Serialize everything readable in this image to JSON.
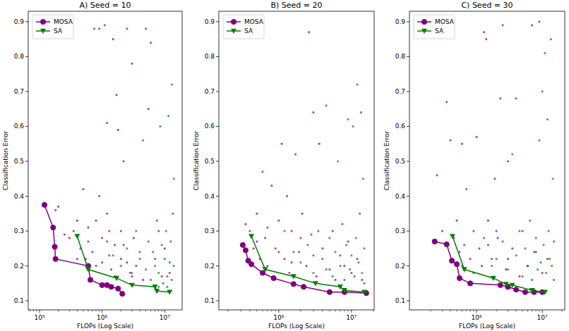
{
  "chart_data": [
    {
      "type": "scatter",
      "title": "A) Seed = 10",
      "x_label": "FLOPs (Log Scale)",
      "y_label": "Classification Error",
      "log": "x",
      "legend": "upper left",
      "xlim": [
        66000,
        19000000
      ],
      "ylim": [
        0.074,
        0.93
      ],
      "xticks": [
        {
          "value": 100000,
          "label": "10⁵"
        },
        {
          "value": 1000000,
          "label": "10⁶"
        },
        {
          "value": 10000000,
          "label": "10⁷"
        }
      ],
      "yticks": [
        0.1,
        0.2,
        0.3,
        0.4,
        0.5,
        0.6,
        0.7,
        0.8,
        0.9
      ],
      "series": [
        {
          "name": "MOSA",
          "type": "line",
          "color": "#800080",
          "marker": "circle",
          "line_style": "solid",
          "x": [
            120000,
            165000,
            175000,
            180000,
            600000,
            650000,
            1000000,
            1200000,
            1400000,
            1800000,
            2100000
          ],
          "values": [
            0.375,
            0.31,
            0.255,
            0.22,
            0.2,
            0.16,
            0.145,
            0.145,
            0.14,
            0.135,
            0.12
          ]
        },
        {
          "name": "SA",
          "type": "line",
          "color": "#008000",
          "marker": "triangle_down",
          "line_style": "solid",
          "x": [
            400000,
            600000,
            1700000,
            3000000,
            7000000,
            7500000,
            12000000
          ],
          "values": [
            0.285,
            0.19,
            0.165,
            0.145,
            0.14,
            0.128,
            0.125
          ]
        },
        {
          "name": "MOSA",
          "type": "scatter",
          "color": "#800080",
          "marker": "dot",
          "x": [
            180000,
            200000,
            250000,
            300000,
            350000,
            400000,
            450000,
            500000,
            550000,
            600000,
            700000,
            750000,
            800000,
            900000,
            1000000,
            1100000,
            1200000,
            1300000,
            1400000,
            1500000,
            1600000,
            1700000,
            1800000,
            2000000,
            2200000,
            2500000,
            2800000,
            3000000,
            3200000,
            3500000,
            4000000,
            4500000,
            5000000,
            5500000,
            6000000,
            7000000,
            8000000,
            9000000,
            10000000,
            12000000,
            400000,
            600000,
            800000,
            1000000,
            1300000,
            1600000,
            2000000,
            2500000,
            3000000,
            600000,
            900000,
            1200000,
            2200000
          ],
          "values": [
            0.36,
            0.37,
            0.29,
            0.28,
            0.3,
            0.33,
            0.25,
            0.42,
            0.22,
            0.27,
            0.24,
            0.88,
            0.33,
            0.88,
            0.21,
            0.89,
            0.61,
            0.3,
            0.19,
            0.85,
            0.26,
            0.69,
            0.59,
            0.22,
            0.5,
            0.88,
            0.18,
            0.78,
            0.28,
            0.2,
            0.24,
            0.16,
            0.88,
            0.65,
            0.84,
            0.22,
            0.3,
            0.17,
            0.25,
            0.18,
            0.22,
            0.19,
            0.2,
            0.28,
            0.23,
            0.17,
            0.3,
            0.21,
            0.17,
            0.31,
            0.4,
            0.35,
            0.26
          ]
        },
        {
          "name": "SA",
          "type": "scatter",
          "color": "#008000",
          "marker": "dot",
          "x": [
            2000000,
            2500000,
            3000000,
            3500000,
            4000000,
            4500000,
            5000000,
            5500000,
            6000000,
            6500000,
            7000000,
            7500000,
            8000000,
            8500000,
            9000000,
            9500000,
            10000000,
            10500000,
            11000000,
            11500000,
            12000000,
            12500000,
            13000000,
            13000000,
            13500000,
            14000000,
            14000000,
            1200000,
            1500000,
            8000000,
            11000000
          ],
          "values": [
            0.2,
            0.25,
            0.18,
            0.3,
            0.22,
            0.56,
            0.19,
            0.27,
            0.16,
            0.24,
            0.2,
            0.33,
            0.18,
            0.6,
            0.26,
            0.15,
            0.22,
            0.3,
            0.17,
            0.63,
            0.21,
            0.27,
            0.72,
            0.16,
            0.35,
            0.45,
            0.2,
            0.27,
            0.23,
            0.14,
            0.14
          ]
        }
      ]
    },
    {
      "type": "scatter",
      "title": "B) Seed = 20",
      "x_label": "FLOPs (Log Scale)",
      "y_label": "Classification Error",
      "log": "x",
      "legend": "upper left",
      "xlim": [
        150000,
        20500000
      ],
      "ylim": [
        0.074,
        0.93
      ],
      "xticks": [
        {
          "value": 1000000,
          "label": "10⁶"
        },
        {
          "value": 10000000,
          "label": "10⁷"
        }
      ],
      "yticks": [
        0.1,
        0.2,
        0.3,
        0.4,
        0.5,
        0.6,
        0.7,
        0.8,
        0.9
      ],
      "series": [
        {
          "name": "MOSA",
          "type": "line",
          "color": "#800080",
          "marker": "circle",
          "line_style": "solid",
          "x": [
            320000,
            350000,
            380000,
            420000,
            600000,
            850000,
            1600000,
            2200000,
            5000000,
            8000000,
            16000000
          ],
          "values": [
            0.26,
            0.245,
            0.215,
            0.205,
            0.18,
            0.165,
            0.148,
            0.14,
            0.125,
            0.125,
            0.122
          ]
        },
        {
          "name": "SA",
          "type": "line",
          "color": "#008000",
          "marker": "triangle_down",
          "line_style": "solid",
          "x": [
            420000,
            650000,
            1600000,
            3200000,
            7000000,
            8000000,
            15000000
          ],
          "values": [
            0.285,
            0.19,
            0.17,
            0.15,
            0.14,
            0.13,
            0.125
          ]
        },
        {
          "name": "MOSA",
          "type": "scatter",
          "color": "#800080",
          "marker": "dot",
          "x": [
            350000,
            400000,
            450000,
            500000,
            550000,
            600000,
            650000,
            700000,
            800000,
            900000,
            1000000,
            1100000,
            1200000,
            1300000,
            1400000,
            1500000,
            1700000,
            1900000,
            2100000,
            2400000,
            2600000,
            2800000,
            3000000,
            3300000,
            3600000,
            4000000,
            4500000,
            5000000,
            5500000,
            6000000,
            7000000,
            8000000,
            9000000,
            10000000,
            12000000,
            14000000,
            500000,
            700000,
            1000000,
            1500000,
            2000000,
            3000000
          ],
          "values": [
            0.32,
            0.3,
            0.25,
            0.35,
            0.22,
            0.47,
            0.28,
            0.2,
            0.43,
            0.25,
            0.33,
            0.55,
            0.22,
            0.4,
            0.18,
            0.3,
            0.52,
            0.24,
            0.35,
            0.2,
            0.87,
            0.29,
            0.64,
            0.17,
            0.55,
            0.25,
            0.66,
            0.19,
            0.3,
            0.16,
            0.23,
            0.2,
            0.27,
            0.18,
            0.22,
            0.16,
            0.27,
            0.31,
            0.24,
            0.21,
            0.28,
            0.23
          ]
        },
        {
          "name": "SA",
          "type": "scatter",
          "color": "#008000",
          "marker": "dot",
          "x": [
            2000000,
            2500000,
            3000000,
            3500000,
            4000000,
            4500000,
            5000000,
            5500000,
            6000000,
            6500000,
            7000000,
            7500000,
            8000000,
            8500000,
            9000000,
            9500000,
            10000000,
            10500000,
            11000000,
            11500000,
            12000000,
            12500000,
            13000000,
            13500000,
            14000000,
            14500000,
            15000000,
            15000000,
            1200000,
            1600000
          ],
          "values": [
            0.21,
            0.26,
            0.18,
            0.3,
            0.22,
            0.19,
            0.28,
            0.17,
            0.24,
            0.5,
            0.2,
            0.32,
            0.16,
            0.26,
            0.62,
            0.19,
            0.23,
            0.6,
            0.17,
            0.28,
            0.72,
            0.21,
            0.35,
            0.64,
            0.18,
            0.45,
            0.25,
            0.15,
            0.3,
            0.24
          ]
        }
      ]
    },
    {
      "type": "scatter",
      "title": "C) Seed = 30",
      "x_label": "FLOPs (Log Scale)",
      "y_label": "Classification Error",
      "log": "x",
      "legend": "upper left",
      "xlim": [
        95000,
        22000000
      ],
      "ylim": [
        0.074,
        0.93
      ],
      "xticks": [
        {
          "value": 1000000,
          "label": "10⁶"
        },
        {
          "value": 10000000,
          "label": "10⁷"
        }
      ],
      "yticks": [
        0.1,
        0.2,
        0.3,
        0.4,
        0.5,
        0.6,
        0.7,
        0.8,
        0.9
      ],
      "series": [
        {
          "name": "MOSA",
          "type": "line",
          "color": "#800080",
          "marker": "circle",
          "line_style": "solid",
          "x": [
            230000,
            350000,
            420000,
            500000,
            550000,
            800000,
            2300000,
            3000000,
            4000000,
            5500000,
            7500000,
            10000000
          ],
          "values": [
            0.27,
            0.262,
            0.215,
            0.205,
            0.165,
            0.15,
            0.145,
            0.14,
            0.132,
            0.125,
            0.125,
            0.125
          ]
        },
        {
          "name": "SA",
          "type": "line",
          "color": "#008000",
          "marker": "triangle_down",
          "line_style": "solid",
          "x": [
            430000,
            650000,
            1800000,
            2800000,
            3500000,
            7000000,
            11000000
          ],
          "values": [
            0.285,
            0.19,
            0.165,
            0.148,
            0.145,
            0.13,
            0.125
          ]
        },
        {
          "name": "MOSA",
          "type": "scatter",
          "color": "#800080",
          "marker": "dot",
          "x": [
            250000,
            300000,
            350000,
            400000,
            450000,
            500000,
            550000,
            600000,
            650000,
            700000,
            800000,
            900000,
            1000000,
            1100000,
            1200000,
            1300000,
            1400000,
            1500000,
            1700000,
            1900000,
            2100000,
            2300000,
            2500000,
            2800000,
            3000000,
            3500000,
            4000000,
            4500000,
            5000000,
            6000000,
            7000000,
            8000000,
            9000000,
            10000000,
            12000000,
            600000,
            900000,
            1500000,
            2000000,
            3000000
          ],
          "values": [
            0.46,
            0.3,
            0.67,
            0.56,
            0.28,
            0.33,
            0.24,
            0.55,
            0.26,
            0.42,
            0.22,
            0.3,
            0.57,
            0.25,
            0.2,
            0.87,
            0.85,
            0.33,
            0.22,
            0.45,
            0.28,
            0.68,
            0.89,
            0.19,
            0.5,
            0.25,
            0.68,
            0.17,
            0.3,
            0.2,
            0.89,
            0.24,
            0.9,
            0.18,
            0.22,
            0.2,
            0.18,
            0.26,
            0.3,
            0.22
          ]
        },
        {
          "name": "SA",
          "type": "scatter",
          "color": "#008000",
          "marker": "dot",
          "x": [
            2000000,
            2500000,
            3000000,
            3500000,
            4000000,
            4500000,
            5000000,
            5500000,
            6000000,
            6500000,
            7000000,
            7500000,
            8000000,
            8500000,
            9000000,
            9500000,
            10000000,
            10500000,
            11000000,
            11500000,
            12000000,
            12500000,
            13000000,
            13500000,
            14000000,
            14500000,
            15000000,
            15000000,
            1300000,
            1700000
          ],
          "values": [
            0.22,
            0.27,
            0.19,
            0.52,
            0.23,
            0.3,
            0.17,
            0.25,
            0.2,
            0.33,
            0.16,
            0.24,
            0.28,
            0.19,
            0.56,
            0.21,
            0.7,
            0.26,
            0.81,
            0.18,
            0.62,
            0.3,
            0.22,
            0.85,
            0.2,
            0.45,
            0.27,
            0.16,
            0.28,
            0.2
          ]
        }
      ]
    }
  ]
}
